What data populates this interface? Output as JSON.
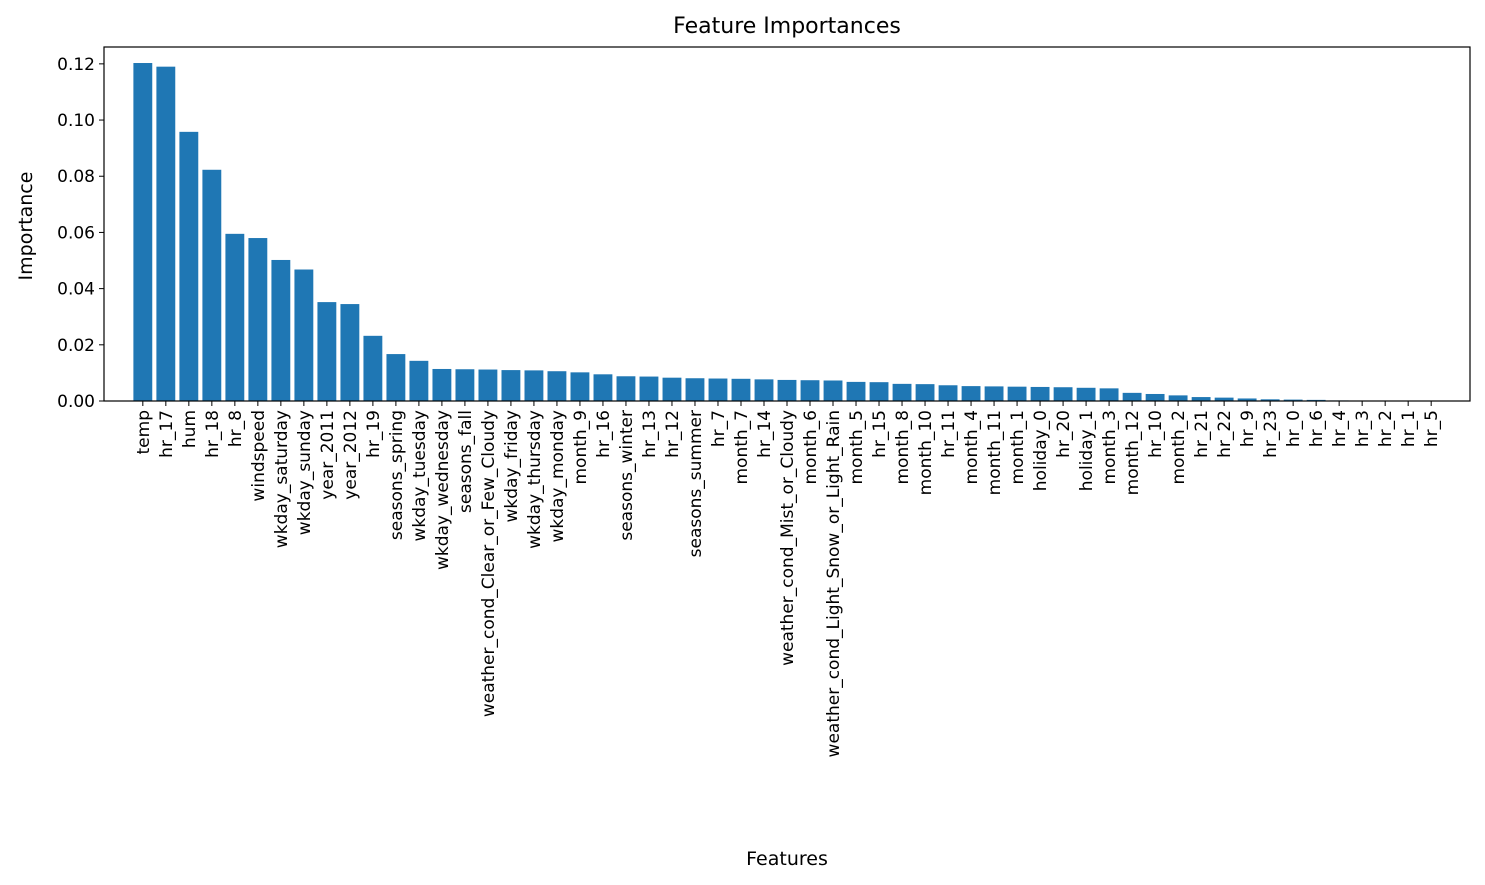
{
  "chart_data": {
    "type": "bar",
    "title": "Feature Importances",
    "xlabel": "Features",
    "ylabel": "Importance",
    "ylim": [
      0,
      0.126
    ],
    "yticks": [
      "0.00",
      "0.02",
      "0.04",
      "0.06",
      "0.08",
      "0.10",
      "0.12"
    ],
    "grid": false,
    "bar_color": "#1f77b4",
    "categories": [
      "temp",
      "hr_17",
      "hum",
      "hr_18",
      "hr_8",
      "windspeed",
      "wkday_saturday",
      "wkday_sunday",
      "year_2011",
      "year_2012",
      "hr_19",
      "seasons_spring",
      "wkday_tuesday",
      "wkday_wednesday",
      "seasons_fall",
      "weather_cond_Clear_or_Few_Cloudy",
      "wkday_friday",
      "wkday_thursday",
      "wkday_monday",
      "month_9",
      "hr_16",
      "seasons_winter",
      "hr_13",
      "hr_12",
      "seasons_summer",
      "hr_7",
      "month_7",
      "hr_14",
      "weather_cond_Mist_or_Cloudy",
      "month_6",
      "weather_cond_Light_Snow_or_Light_Rain",
      "month_5",
      "hr_15",
      "month_8",
      "month_10",
      "hr_11",
      "month_4",
      "month_11",
      "month_1",
      "holiday_0",
      "hr_20",
      "holiday_1",
      "month_3",
      "month_12",
      "hr_10",
      "month_2",
      "hr_21",
      "hr_22",
      "hr_9",
      "hr_23",
      "hr_0",
      "hr_6",
      "hr_4",
      "hr_3",
      "hr_2",
      "hr_1",
      "hr_5"
    ],
    "values": [
      0.1203,
      0.119,
      0.0958,
      0.0823,
      0.0595,
      0.058,
      0.0502,
      0.0468,
      0.0352,
      0.0345,
      0.0232,
      0.0167,
      0.0143,
      0.0114,
      0.0113,
      0.0112,
      0.011,
      0.0109,
      0.0106,
      0.0102,
      0.0095,
      0.0088,
      0.0087,
      0.0083,
      0.0081,
      0.008,
      0.0079,
      0.0077,
      0.0075,
      0.0074,
      0.0073,
      0.0068,
      0.0067,
      0.0061,
      0.006,
      0.0056,
      0.0053,
      0.0052,
      0.0051,
      0.005,
      0.0049,
      0.0047,
      0.0045,
      0.0029,
      0.0025,
      0.002,
      0.0014,
      0.0012,
      0.0009,
      0.0006,
      0.0005,
      0.0004,
      0.0002,
      0.0001,
      0.0001,
      0.0001,
      0.0001
    ]
  }
}
